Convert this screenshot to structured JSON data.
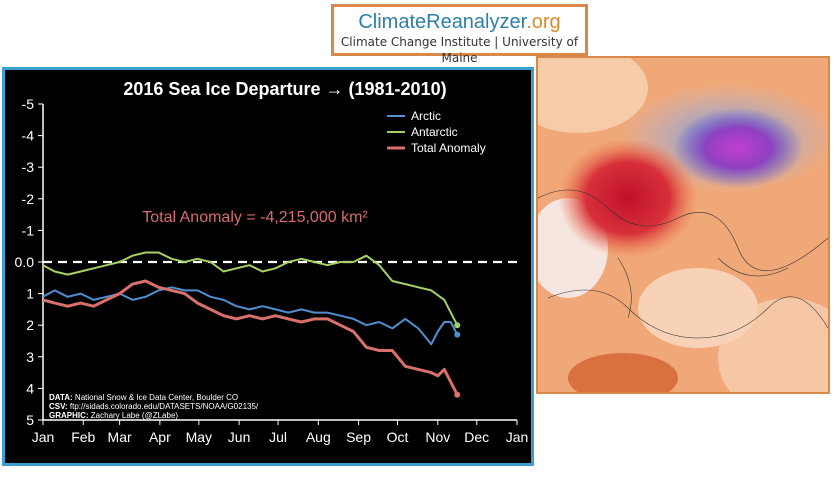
{
  "brand": {
    "name_part1": "ClimateReanalyzer",
    "name_part2": ".org",
    "subtitle": "Climate Change Institute | University of Maine"
  },
  "chart_data": {
    "type": "line",
    "title": "2016 Sea Ice Departure → (1981-2010)",
    "annotation": "Total Anomaly = -4,215,000 km²",
    "ylim": [
      5,
      -5
    ],
    "y_ticks": [
      "-5",
      "-4",
      "-3",
      "-2",
      "-1",
      "0.0",
      "1",
      "2",
      "3",
      "4",
      "5"
    ],
    "x_ticks": [
      "Jan",
      "Feb",
      "Mar",
      "Apr",
      "May",
      "Jun",
      "Jul",
      "Aug",
      "Sep",
      "Oct",
      "Nov",
      "Dec",
      "Jan"
    ],
    "x_unit": "day of year",
    "zero_line": "dashed",
    "legend_position": "top-right",
    "series": [
      {
        "name": "Arctic",
        "color": "#4f8fd0",
        "x": [
          1,
          10,
          20,
          30,
          40,
          50,
          60,
          70,
          80,
          90,
          100,
          110,
          120,
          130,
          140,
          150,
          160,
          170,
          180,
          190,
          200,
          210,
          220,
          230,
          240,
          250,
          260,
          270,
          280,
          290,
          300,
          305,
          310,
          315,
          320
        ],
        "y": [
          1.1,
          0.9,
          1.1,
          1.0,
          1.2,
          1.1,
          1.0,
          1.2,
          1.1,
          0.9,
          0.8,
          0.9,
          0.9,
          1.1,
          1.2,
          1.4,
          1.5,
          1.4,
          1.5,
          1.6,
          1.5,
          1.6,
          1.6,
          1.7,
          1.8,
          2.0,
          1.9,
          2.1,
          1.8,
          2.1,
          2.6,
          2.2,
          1.9,
          1.9,
          2.3
        ]
      },
      {
        "name": "Antarctic",
        "color": "#a6d264",
        "x": [
          1,
          10,
          20,
          30,
          40,
          50,
          60,
          70,
          80,
          90,
          100,
          110,
          120,
          130,
          140,
          150,
          160,
          170,
          180,
          190,
          200,
          210,
          220,
          230,
          240,
          250,
          260,
          270,
          280,
          290,
          300,
          310,
          315,
          320
        ],
        "y": [
          0.1,
          0.3,
          0.4,
          0.3,
          0.2,
          0.1,
          0.0,
          -0.2,
          -0.3,
          -0.3,
          -0.1,
          0.0,
          -0.1,
          0.0,
          0.3,
          0.2,
          0.1,
          0.3,
          0.2,
          0.0,
          -0.1,
          0.0,
          0.1,
          0.0,
          0.0,
          -0.2,
          0.1,
          0.6,
          0.7,
          0.8,
          0.9,
          1.2,
          1.6,
          2.0
        ]
      },
      {
        "name": "Total Anomaly",
        "color": "#d9706a",
        "x": [
          1,
          10,
          20,
          30,
          40,
          50,
          60,
          70,
          80,
          90,
          100,
          110,
          120,
          130,
          140,
          150,
          160,
          170,
          180,
          190,
          200,
          210,
          220,
          230,
          240,
          250,
          260,
          270,
          280,
          290,
          300,
          305,
          310,
          315,
          320
        ],
        "y": [
          1.2,
          1.3,
          1.4,
          1.3,
          1.4,
          1.2,
          1.0,
          0.7,
          0.6,
          0.8,
          0.9,
          1.0,
          1.3,
          1.5,
          1.7,
          1.8,
          1.7,
          1.8,
          1.7,
          1.8,
          1.9,
          1.8,
          1.8,
          2.0,
          2.2,
          2.7,
          2.8,
          2.8,
          3.3,
          3.4,
          3.5,
          3.6,
          3.4,
          3.8,
          4.2
        ]
      }
    ],
    "credits": [
      {
        "label": "DATA:",
        "text": "National Snow & Ice Data Center, Boulder CO"
      },
      {
        "label": "CSV:",
        "text": "ftp://sidads.colorado.edu/DATASETS/NOAA/G02135/"
      },
      {
        "label": "GRAPHIC:",
        "text": "Zachary Labe (@ZLabe)"
      }
    ]
  }
}
